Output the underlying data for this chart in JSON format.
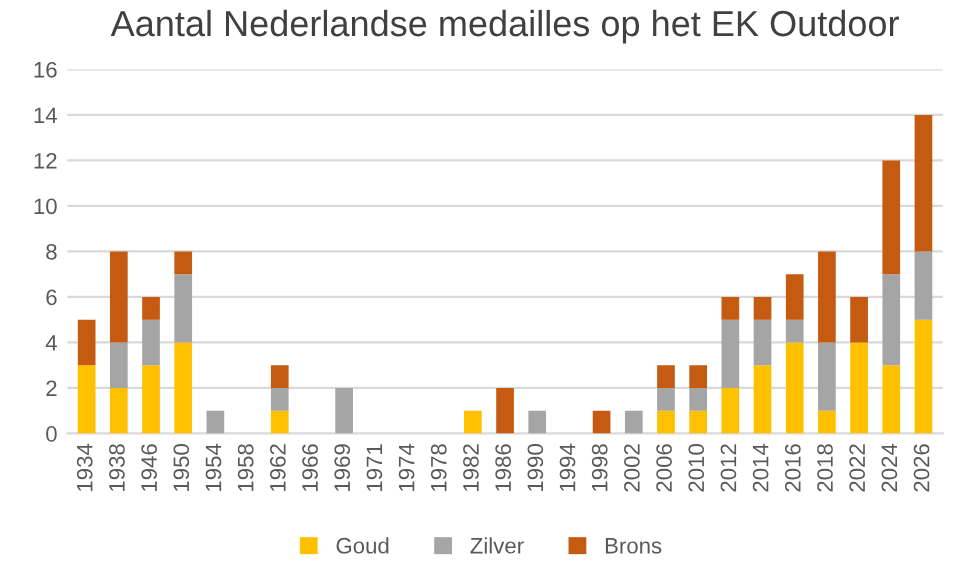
{
  "chart_data": {
    "type": "bar",
    "stacked": true,
    "title": "Aantal Nederlandse medailles op het EK Outdoor",
    "categories": [
      "1934",
      "1938",
      "1946",
      "1950",
      "1954",
      "1958",
      "1962",
      "1966",
      "1969",
      "1971",
      "1974",
      "1978",
      "1982",
      "1986",
      "1990",
      "1994",
      "1998",
      "2002",
      "2006",
      "2010",
      "2012",
      "2014",
      "2016",
      "2018",
      "2022",
      "2024",
      "2026"
    ],
    "series": [
      {
        "name": "Goud",
        "color": "#ffc000",
        "values": [
          3,
          2,
          3,
          4,
          0,
          0,
          1,
          0,
          0,
          0,
          0,
          0,
          1,
          0,
          0,
          0,
          0,
          0,
          1,
          1,
          2,
          3,
          4,
          1,
          4,
          3,
          5
        ]
      },
      {
        "name": "Zilver",
        "color": "#a5a5a5",
        "values": [
          0,
          2,
          2,
          3,
          1,
          0,
          1,
          0,
          2,
          0,
          0,
          0,
          0,
          0,
          1,
          0,
          0,
          1,
          1,
          1,
          3,
          2,
          1,
          3,
          0,
          4,
          3
        ]
      },
      {
        "name": "Brons",
        "color": "#c55a11",
        "values": [
          2,
          4,
          1,
          1,
          0,
          0,
          1,
          0,
          0,
          0,
          0,
          0,
          0,
          2,
          0,
          0,
          1,
          0,
          1,
          1,
          1,
          1,
          2,
          4,
          2,
          5,
          6
        ]
      }
    ],
    "ylim": [
      0,
      16
    ],
    "yticks": [
      0,
      2,
      4,
      6,
      8,
      10,
      12,
      14,
      16
    ],
    "grid": "y",
    "legend": "bottom"
  }
}
